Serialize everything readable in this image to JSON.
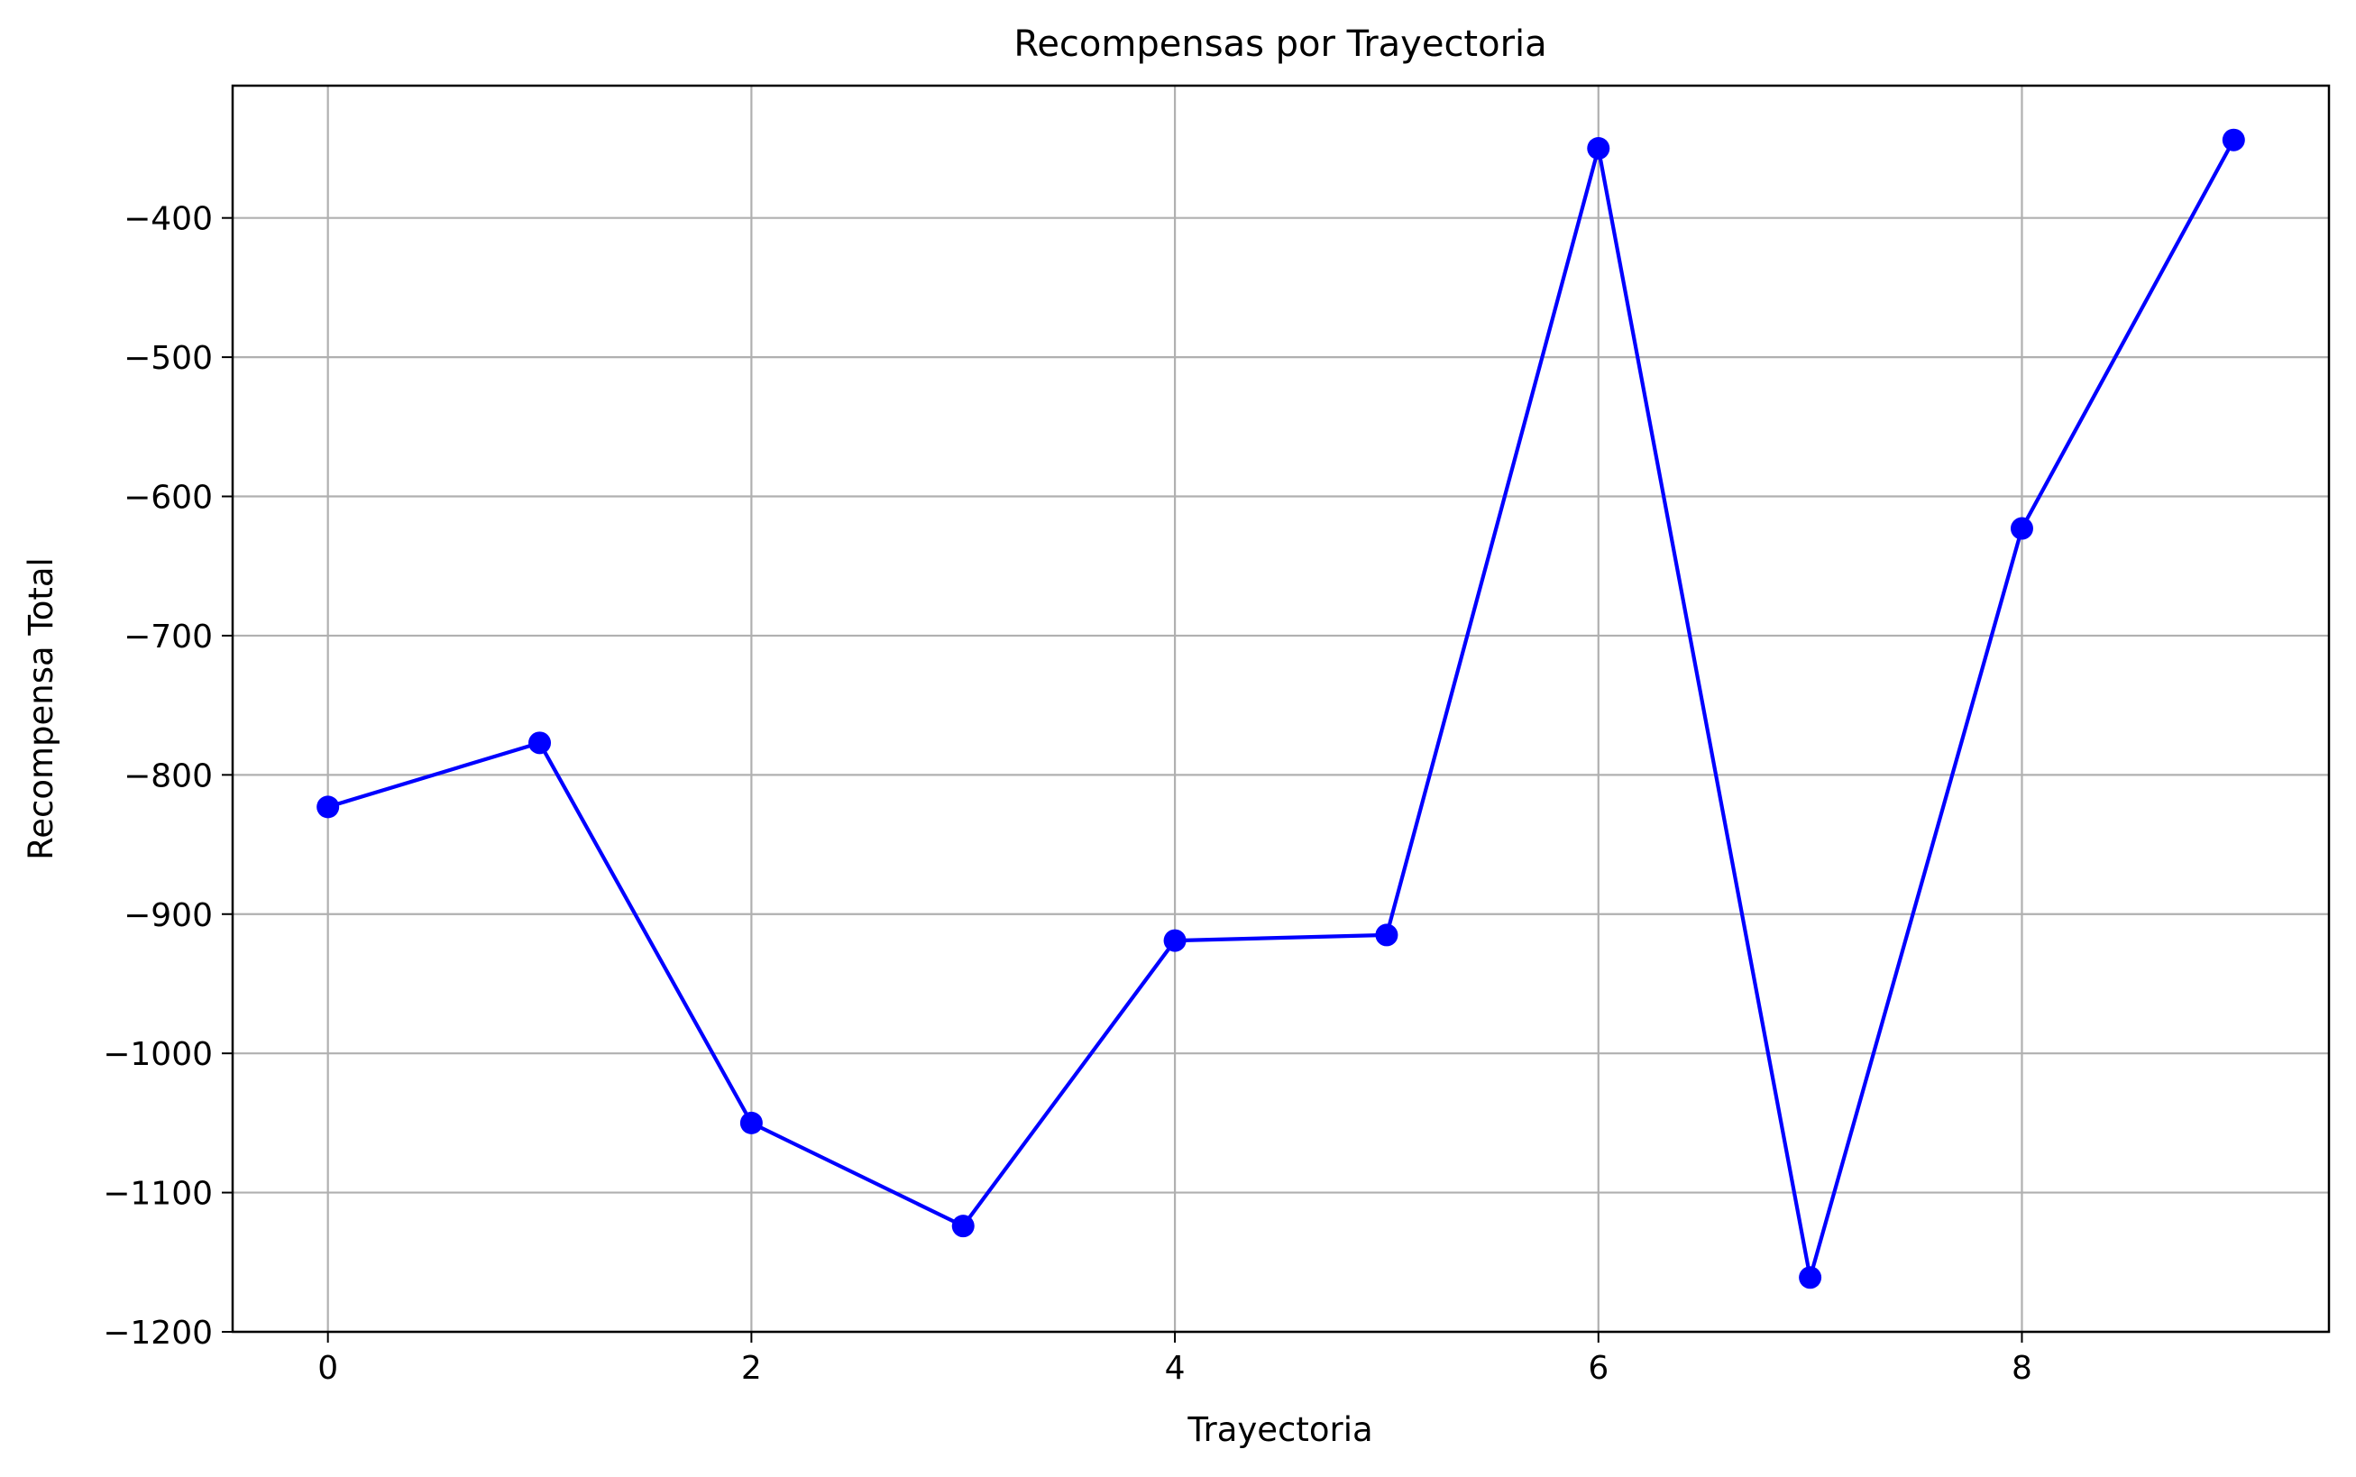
{
  "chart_data": {
    "type": "line",
    "title": "Recompensas por Trayectoria",
    "xlabel": "Trayectoria",
    "ylabel": "Recompensa Total",
    "x": [
      0,
      1,
      2,
      3,
      4,
      5,
      6,
      7,
      8,
      9
    ],
    "series": [
      {
        "values": [
          -823,
          -777,
          -1050,
          -1124,
          -919,
          -915,
          -350,
          -1161,
          -623,
          -344
        ],
        "color": "#0000ff",
        "marker": "circle"
      }
    ],
    "xlim": [
      -0.45,
      9.45
    ],
    "ylim": [
      -1200,
      -305
    ],
    "xticks": [
      0,
      2,
      4,
      6,
      8
    ],
    "xtick_labels": [
      "0",
      "2",
      "4",
      "6",
      "8"
    ],
    "yticks": [
      -400,
      -500,
      -600,
      -700,
      -800,
      -900,
      -1000,
      -1100,
      -1200
    ],
    "ytick_labels": [
      "−400",
      "−500",
      "−600",
      "−700",
      "−800",
      "−900",
      "−1000",
      "−1100",
      "−1200"
    ],
    "grid": true,
    "grid_color": "#b0b0b0"
  }
}
